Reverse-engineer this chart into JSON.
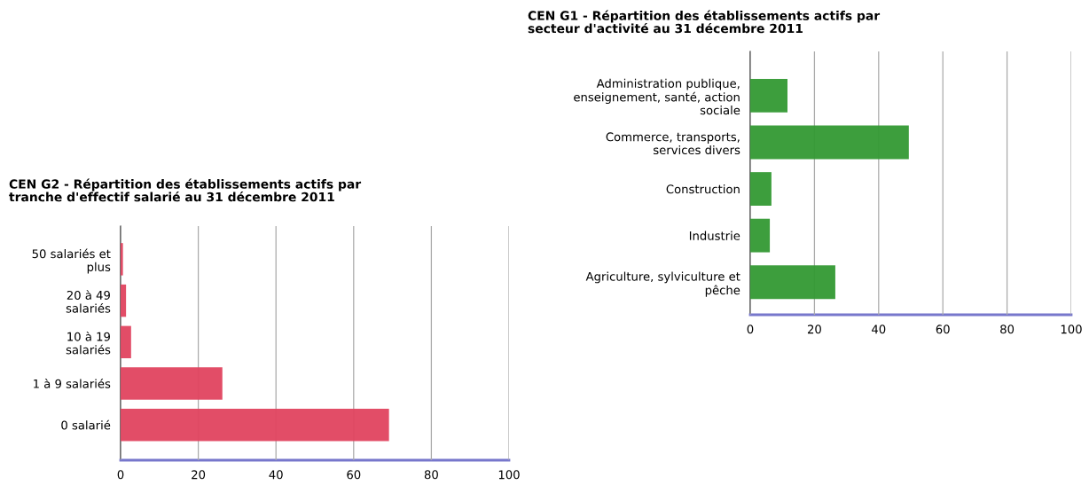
{
  "chart_data": [
    {
      "type": "bar",
      "orientation": "horizontal",
      "title": "CEN G2 - Répartition des établissements actifs par\ntranche d'effectif salarié au 31 décembre 2011",
      "categories": [
        "50 salariés et\nplus",
        "20 à 49\nsalariés",
        "10 à 19\nsalariés",
        "1 à 9 salariés",
        "0 salarié"
      ],
      "values": [
        0.6,
        1.4,
        2.7,
        26.2,
        69.1
      ],
      "color": "#e0435f",
      "xlim": [
        0,
        100
      ],
      "xticks": [
        0,
        20,
        40,
        60,
        80,
        100
      ],
      "grid": "x",
      "legend": false
    },
    {
      "type": "bar",
      "orientation": "horizontal",
      "title": "CEN G1 - Répartition des établissements actifs par\nsecteur d'activité au 31 décembre 2011",
      "categories": [
        "Administration publique,\nenseignement, santé, action\nsociale",
        "Commerce, transports,\nservices divers",
        "Construction",
        "Industrie",
        "Agriculture, sylviculture et\npêche"
      ],
      "values": [
        11.6,
        49.4,
        6.6,
        6.1,
        26.5
      ],
      "color": "#339933",
      "xlim": [
        0,
        100
      ],
      "xticks": [
        0,
        20,
        40,
        60,
        80,
        100
      ],
      "grid": "x",
      "legend": false
    }
  ]
}
